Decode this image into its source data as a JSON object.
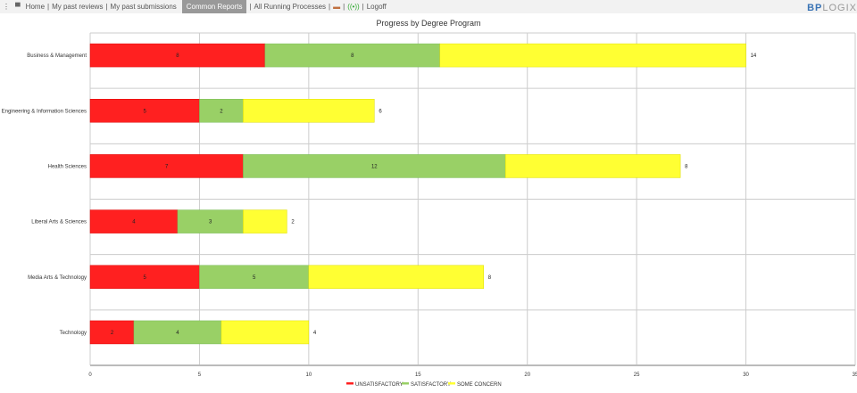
{
  "nav": {
    "items": [
      "Home",
      "My past reviews",
      "My past submissions",
      "Common Reports",
      "All Running Processes",
      "Logoff"
    ],
    "active": "Common Reports",
    "logo": "BP LOGIX"
  },
  "chart_data": {
    "type": "bar",
    "orientation": "horizontal",
    "stacked": true,
    "title": "Progress by Degree Program",
    "categories": [
      "Business & Management",
      "Engineering & Information Sciences",
      "Health Sciences",
      "Liberal Arts & Sciences",
      "Media Arts & Technology",
      "Technology"
    ],
    "series": [
      {
        "name": "UNSATISFACTORY",
        "color": "#ff2020",
        "values": [
          8,
          5,
          7,
          4,
          5,
          2
        ]
      },
      {
        "name": "SATISFACTORY",
        "color": "#99d066",
        "values": [
          8,
          2,
          12,
          3,
          5,
          4
        ]
      },
      {
        "name": "SOME CONCERN",
        "color": "#ffff33",
        "values": [
          14,
          6,
          8,
          2,
          8,
          4
        ]
      }
    ],
    "xlim": [
      0,
      35
    ],
    "xticks": [
      0,
      5,
      10,
      15,
      20,
      25,
      30,
      35
    ],
    "grid": true,
    "legend": "bottom"
  }
}
